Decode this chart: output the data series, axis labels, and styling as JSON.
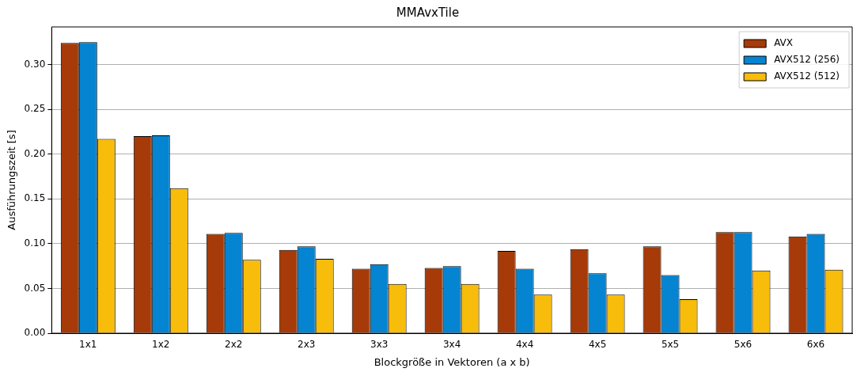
{
  "chart_data": {
    "type": "bar",
    "title": "MMAvxTile",
    "xlabel": "Blockgröße in Vektoren (a x b)",
    "ylabel": "Ausführungszeit [s]",
    "categories": [
      "1x1",
      "1x2",
      "2x2",
      "2x3",
      "3x3",
      "3x4",
      "4x4",
      "4x5",
      "5x5",
      "5x6",
      "6x6"
    ],
    "series": [
      {
        "name": "AVX",
        "color": "#a63a08",
        "values": [
          0.324,
          0.22,
          0.111,
          0.093,
          0.072,
          0.073,
          0.092,
          0.094,
          0.097,
          0.113,
          0.108
        ]
      },
      {
        "name": "AVX512 (256)",
        "color": "#0484d1",
        "values": [
          0.325,
          0.221,
          0.112,
          0.097,
          0.077,
          0.075,
          0.072,
          0.067,
          0.065,
          0.113,
          0.111
        ]
      },
      {
        "name": "AVX512 (512)",
        "color": "#f8bc0a",
        "values": [
          0.217,
          0.162,
          0.082,
          0.083,
          0.055,
          0.055,
          0.043,
          0.043,
          0.038,
          0.07,
          0.071
        ]
      }
    ],
    "ylim": [
      0,
      0.342
    ],
    "yticks": [
      {
        "value": 0,
        "label": "0.00"
      },
      {
        "value": 0.05,
        "label": "0.05"
      },
      {
        "value": 0.1,
        "label": "0.10"
      },
      {
        "value": 0.15,
        "label": "0.15"
      },
      {
        "value": 0.2,
        "label": "0.20"
      },
      {
        "value": 0.25,
        "label": "0.25"
      },
      {
        "value": 0.3,
        "label": "0.30"
      }
    ],
    "grid": "y",
    "legend": "top right"
  }
}
